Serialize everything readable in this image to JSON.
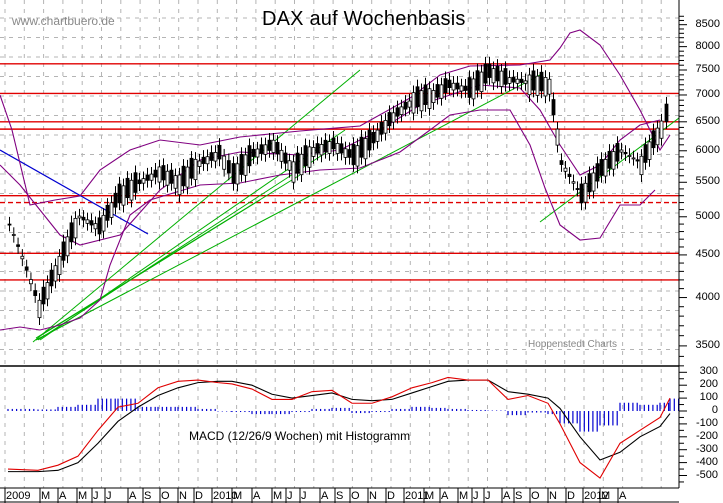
{
  "title": "DAX auf Wochenbasis",
  "watermark": "www.chartbuero.de",
  "source_label": "Hoppenstedt Charts",
  "macd_label": "MACD (12/26/9 Wochen) mit Histogramm",
  "price_axis": {
    "ticks": [
      "8500",
      "8000",
      "7500",
      "7000",
      "6500",
      "6000",
      "5500",
      "5000",
      "4500",
      "4000",
      "3500"
    ]
  },
  "macd_axis": {
    "ticks": [
      "300",
      "200",
      "100",
      "0",
      "-100",
      "-200",
      "-300",
      "-400",
      "-500"
    ]
  },
  "x_axis": {
    "labels": [
      "2009",
      "M",
      "A",
      "M",
      "J",
      "J",
      "A",
      "S",
      "O",
      "N",
      "D",
      "2010",
      "M",
      "A",
      "M",
      "J",
      "J",
      "A",
      "S",
      "O",
      "N",
      "D",
      "2011",
      "M",
      "A",
      "M",
      "J",
      "J",
      "A",
      "S",
      "O",
      "N",
      "D",
      "2012",
      "M",
      "A"
    ]
  },
  "colors": {
    "horizontal_lines": "#e00000",
    "bollinger": "#800080",
    "trendlines": "#00b000",
    "downtrend": "#0000d0",
    "macd_line": "#e00000",
    "signal_line": "#000000",
    "histogram": "#0000d0",
    "grid": "#b0b0b0"
  },
  "chart_data": [
    {
      "type": "candlestick",
      "title": "DAX auf Wochenbasis",
      "scale": "log",
      "ylim": [
        3400,
        8700
      ],
      "x": [
        "2009-01",
        "2009-03",
        "2009-04",
        "2009-05",
        "2009-06",
        "2009-07",
        "2009-08",
        "2009-09",
        "2009-10",
        "2009-11",
        "2009-12",
        "2010-01",
        "2010-03",
        "2010-04",
        "2010-05",
        "2010-06",
        "2010-07",
        "2010-08",
        "2010-09",
        "2010-10",
        "2010-11",
        "2010-12",
        "2011-01",
        "2011-03",
        "2011-04",
        "2011-05",
        "2011-06",
        "2011-07",
        "2011-08",
        "2011-09",
        "2011-10",
        "2011-11",
        "2011-12",
        "2012-01",
        "2012-02"
      ],
      "series": [
        {
          "name": "DAX close (approx.)",
          "values": [
            4900,
            3900,
            4400,
            5000,
            4850,
            5300,
            5500,
            5650,
            5500,
            5800,
            5950,
            5600,
            5950,
            6100,
            5700,
            6000,
            6100,
            5900,
            6200,
            6600,
            6900,
            7000,
            7200,
            7100,
            7450,
            7300,
            7250,
            7200,
            5800,
            5300,
            5700,
            6000,
            5800,
            6400,
            6850
          ]
        },
        {
          "name": "Bollinger upper (approx.)",
          "values": [
            7200,
            5400,
            4800,
            5100,
            5300,
            5500,
            5850,
            6000,
            6100,
            6150,
            6200,
            6150,
            6200,
            6300,
            6300,
            6250,
            6350,
            6350,
            6500,
            6900,
            7100,
            7250,
            7400,
            7500,
            7600,
            7550,
            7500,
            7500,
            8400,
            8200,
            7500,
            6600,
            6300,
            6450,
            null
          ]
        },
        {
          "name": "Bollinger lower (approx.)",
          "values": [
            3900,
            3700,
            3700,
            3900,
            4300,
            4800,
            4900,
            5000,
            5200,
            5250,
            5300,
            5300,
            5350,
            5500,
            5600,
            5600,
            5700,
            5800,
            5800,
            5900,
            6000,
            6200,
            6500,
            6700,
            6900,
            7000,
            7000,
            6900,
            5800,
            4900,
            4700,
            4900,
            5000,
            5200,
            5400
          ]
        }
      ],
      "horizontal_lines": [
        7630,
        7030,
        6500,
        6370,
        5300,
        5200,
        4520,
        4200
      ],
      "dashed_lines": [
        5200
      ],
      "annotations": [
        "www.chartbuero.de",
        "Hoppenstedt Charts"
      ],
      "xlabel": "",
      "ylabel": "",
      "grid": true
    },
    {
      "type": "line+bar",
      "title": "MACD (12/26/9 Wochen) mit Histogramm",
      "ylim": [
        -550,
        350
      ],
      "x": [
        "2009-01",
        "2009-03",
        "2009-04",
        "2009-05",
        "2009-06",
        "2009-07",
        "2009-08",
        "2009-09",
        "2009-10",
        "2009-11",
        "2009-12",
        "2010-01",
        "2010-03",
        "2010-04",
        "2010-05",
        "2010-06",
        "2010-07",
        "2010-08",
        "2010-09",
        "2010-10",
        "2010-11",
        "2010-12",
        "2011-01",
        "2011-03",
        "2011-04",
        "2011-05",
        "2011-06",
        "2011-07",
        "2011-08",
        "2011-09",
        "2011-10",
        "2011-11",
        "2011-12",
        "2012-01",
        "2012-02"
      ],
      "series": [
        {
          "name": "MACD",
          "values": [
            -450,
            -460,
            -420,
            -350,
            -150,
            30,
            60,
            180,
            230,
            240,
            220,
            210,
            170,
            90,
            90,
            150,
            160,
            60,
            60,
            110,
            180,
            220,
            260,
            240,
            240,
            90,
            120,
            60,
            -100,
            -400,
            -520,
            -250,
            -150,
            -50,
            100
          ]
        },
        {
          "name": "Signal",
          "values": [
            -470,
            -470,
            -460,
            -400,
            -250,
            -80,
            30,
            120,
            180,
            220,
            230,
            230,
            200,
            130,
            100,
            120,
            140,
            90,
            80,
            90,
            140,
            190,
            230,
            240,
            240,
            150,
            130,
            100,
            20,
            -200,
            -380,
            -320,
            -200,
            -120,
            -20
          ]
        },
        {
          "name": "Histogram",
          "values": [
            20,
            15,
            40,
            60,
            120,
            120,
            40,
            40,
            40,
            20,
            -5,
            -10,
            -30,
            -30,
            -10,
            20,
            30,
            -20,
            -10,
            20,
            40,
            30,
            20,
            10,
            5,
            -40,
            -15,
            -30,
            -120,
            -200,
            -140,
            80,
            60,
            80,
            120
          ]
        }
      ],
      "xlabel": "",
      "ylabel": "",
      "grid": true
    }
  ]
}
